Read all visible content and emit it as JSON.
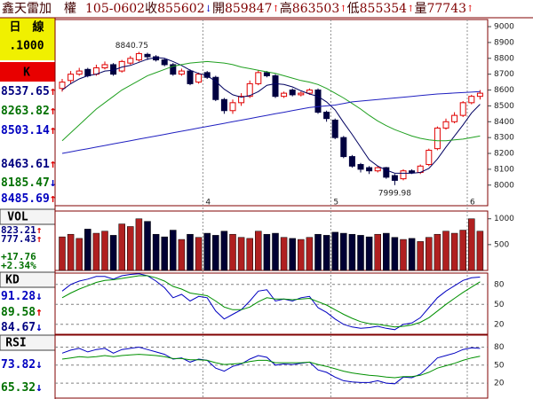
{
  "header": {
    "name": "鑫天雷加　權",
    "date": "105-0602",
    "quotes": [
      {
        "label": "收",
        "value": "855602",
        "arrow": "↓"
      },
      {
        "label": "開",
        "value": "859847",
        "arrow": "↑"
      },
      {
        "label": "高",
        "value": "863503",
        "arrow": "↑"
      },
      {
        "label": "低",
        "value": "855354",
        "arrow": "↑"
      },
      {
        "label": "量",
        "value": "77743",
        "arrow": "↑"
      }
    ]
  },
  "sidebar": {
    "period": "日　線",
    "unit": ".1000",
    "k": "K",
    "k_values": [
      {
        "value": "8537.65",
        "arrow": "↑",
        "color": "#000080"
      },
      {
        "value": "8263.82",
        "arrow": "↑",
        "color": "#007000"
      },
      {
        "value": "8503.14",
        "arrow": "↑",
        "color": "#0000c0"
      },
      {
        "value": "8463.61",
        "arrow": "↑",
        "color": "#000080"
      },
      {
        "value": "8185.47",
        "arrow": "↓",
        "color": "#007000"
      },
      {
        "value": "8485.69",
        "arrow": "↑",
        "color": "#0000c0"
      }
    ],
    "vol_label": "VOL",
    "vol_values": [
      {
        "value": "823.21",
        "arrow": "↑",
        "color": "#000080"
      },
      {
        "value": "777.43",
        "arrow": "↑",
        "color": "#000080"
      }
    ],
    "vol_change": [
      {
        "value": "+17.76",
        "color": "#007000"
      },
      {
        "value": "+2.34%",
        "color": "#007000"
      }
    ],
    "kd_label": "KD",
    "kd_values": [
      {
        "value": "91.28",
        "arrow": "↓",
        "color": "#0000c0"
      },
      {
        "value": "89.58",
        "arrow": "↑",
        "color": "#007000"
      },
      {
        "value": "84.67",
        "arrow": "↓",
        "color": "#000080"
      }
    ],
    "rsi_label": "RSI",
    "rsi_values": [
      {
        "value": "73.82",
        "arrow": "↓",
        "color": "#0000c0"
      },
      {
        "value": "65.32",
        "arrow": "↓",
        "color": "#007000"
      }
    ]
  },
  "chart_data": [
    {
      "type": "candlestick",
      "categories": [
        null,
        null,
        null,
        null,
        null,
        null,
        null,
        null,
        null,
        null,
        null,
        null,
        null,
        null,
        null,
        null,
        null,
        "4",
        null,
        null,
        null,
        null,
        null,
        null,
        null,
        null,
        null,
        null,
        null,
        null,
        null,
        null,
        "5",
        null,
        null,
        null,
        null,
        null,
        null,
        null,
        null,
        null,
        null,
        null,
        null,
        null,
        null,
        null,
        "6",
        null
      ],
      "open": [
        8610,
        8660,
        8700,
        8730,
        8700,
        8740,
        8760,
        8720,
        8770,
        8790,
        8825,
        8810,
        8790,
        8760,
        8700,
        8720,
        8650,
        8710,
        8680,
        8540,
        8470,
        8520,
        8560,
        8640,
        8710,
        8690,
        8560,
        8600,
        8570,
        8580,
        8600,
        8460,
        8410,
        8300,
        8180,
        8130,
        8110,
        8090,
        8110,
        8060,
        8040,
        8090,
        8080,
        8130,
        8230,
        8360,
        8400,
        8440,
        8520,
        8560
      ],
      "high": [
        8670,
        8720,
        8740,
        8740,
        8760,
        8780,
        8770,
        8790,
        8815,
        8840.75,
        8835,
        8820,
        8800,
        8770,
        8735,
        8730,
        8710,
        8720,
        8690,
        8550,
        8540,
        8580,
        8660,
        8725,
        8720,
        8700,
        8590,
        8610,
        8590,
        8610,
        8610,
        8470,
        8420,
        8310,
        8190,
        8140,
        8120,
        8120,
        8115,
        8070,
        8100,
        8100,
        8130,
        8230,
        8370,
        8420,
        8460,
        8530,
        8570,
        8600
      ],
      "low": [
        8590,
        8640,
        8690,
        8680,
        8690,
        8730,
        8690,
        8710,
        8760,
        8780,
        8790,
        8780,
        8750,
        8690,
        8690,
        8630,
        8640,
        8670,
        8530,
        8450,
        8450,
        8500,
        8550,
        8630,
        8680,
        8550,
        8550,
        8560,
        8560,
        8570,
        8450,
        8400,
        8290,
        8170,
        8110,
        8080,
        8070,
        8080,
        8040,
        7999.98,
        8030,
        8070,
        8070,
        8120,
        8220,
        8350,
        8390,
        8430,
        8510,
        8540
      ],
      "close": [
        8650,
        8700,
        8720,
        8690,
        8740,
        8760,
        8700,
        8780,
        8800,
        8830,
        8810,
        8790,
        8760,
        8700,
        8720,
        8640,
        8700,
        8680,
        8540,
        8470,
        8520,
        8560,
        8640,
        8710,
        8690,
        8560,
        8580,
        8570,
        8580,
        8600,
        8460,
        8420,
        8300,
        8180,
        8120,
        8100,
        8090,
        8110,
        8050,
        8030,
        8090,
        8080,
        8120,
        8220,
        8360,
        8400,
        8440,
        8520,
        8560,
        8580
      ],
      "up_color": "#e00000",
      "down_color": "#000040",
      "series": [
        {
          "color": "#000060",
          "values": [
            8600,
            8640,
            8670,
            8690,
            8700,
            8720,
            8725,
            8745,
            8755,
            8775,
            8795,
            8805,
            8800,
            8780,
            8755,
            8725,
            8705,
            8690,
            8655,
            8605,
            8570,
            8555,
            8565,
            8590,
            8630,
            8640,
            8635,
            8620,
            8595,
            8575,
            8560,
            8525,
            8475,
            8395,
            8320,
            8240,
            8160,
            8120,
            8095,
            8075,
            8075,
            8075,
            8080,
            8105,
            8165,
            8240,
            8310,
            8380,
            8455,
            8510
          ]
        },
        {
          "color": "#20a020",
          "values": [
            8280,
            8330,
            8380,
            8430,
            8480,
            8520,
            8560,
            8600,
            8630,
            8660,
            8690,
            8710,
            8730,
            8750,
            8760,
            8770,
            8775,
            8780,
            8775,
            8770,
            8760,
            8745,
            8735,
            8725,
            8715,
            8705,
            8690,
            8675,
            8660,
            8650,
            8635,
            8610,
            8580,
            8550,
            8515,
            8480,
            8440,
            8405,
            8375,
            8350,
            8330,
            8310,
            8295,
            8285,
            8280,
            8280,
            8285,
            8290,
            8300,
            8310
          ]
        },
        {
          "color": "#2020c0",
          "values": [
            8200,
            8210,
            8220,
            8230,
            8240,
            8250,
            8260,
            8270,
            8280,
            8290,
            8300,
            8310,
            8320,
            8330,
            8340,
            8350,
            8360,
            8370,
            8380,
            8390,
            8400,
            8410,
            8420,
            8430,
            8440,
            8450,
            8460,
            8470,
            8480,
            8490,
            8495,
            8500,
            8505,
            8515,
            8525,
            8530,
            8535,
            8540,
            8545,
            8550,
            8555,
            8560,
            8565,
            8570,
            8575,
            8578,
            8581,
            8584,
            8587,
            8590
          ]
        }
      ],
      "ylim": [
        7870,
        9045
      ],
      "yticks": [
        8000,
        8100,
        8200,
        8300,
        8400,
        8500,
        8600,
        8700,
        8800,
        8900,
        9000
      ],
      "grid": false
    },
    {
      "type": "bar",
      "values": [
        650,
        700,
        620,
        800,
        720,
        760,
        680,
        900,
        850,
        1000,
        950,
        700,
        650,
        780,
        600,
        700,
        640,
        720,
        680,
        760,
        700,
        640,
        620,
        760,
        700,
        720,
        640,
        620,
        600,
        640,
        700,
        680,
        740,
        720,
        700,
        680,
        650,
        700,
        720,
        640,
        600,
        620,
        560,
        640,
        700,
        760,
        720,
        780,
        1000,
        760
      ],
      "up_color": "#b02020",
      "down_color": "#000033",
      "ylim": [
        0,
        1150
      ],
      "yticks": [
        500,
        1000
      ],
      "grid": false
    },
    {
      "type": "line",
      "series": [
        {
          "color": "#0000c0",
          "values": [
            70,
            80,
            85,
            88,
            92,
            92,
            88,
            93,
            95,
            96,
            93,
            85,
            75,
            60,
            65,
            55,
            62,
            60,
            40,
            28,
            35,
            42,
            55,
            70,
            72,
            55,
            58,
            55,
            60,
            62,
            45,
            38,
            28,
            20,
            16,
            14,
            15,
            17,
            14,
            12,
            20,
            22,
            30,
            45,
            60,
            70,
            78,
            86,
            90,
            91
          ]
        },
        {
          "color": "#009000",
          "values": [
            60,
            67,
            73,
            78,
            83,
            86,
            87,
            89,
            91,
            93,
            93,
            90,
            85,
            77,
            73,
            67,
            65,
            63,
            55,
            46,
            42,
            42,
            46,
            54,
            60,
            58,
            58,
            57,
            58,
            59,
            54,
            49,
            42,
            35,
            29,
            24,
            21,
            20,
            18,
            16,
            17,
            19,
            23,
            30,
            40,
            50,
            59,
            68,
            76,
            84
          ]
        }
      ],
      "ylim": [
        5,
        97
      ],
      "yticks": [
        20,
        50,
        80
      ],
      "grid": true
    },
    {
      "type": "line",
      "series": [
        {
          "color": "#0000c0",
          "values": [
            70,
            75,
            78,
            72,
            76,
            78,
            70,
            76,
            78,
            80,
            76,
            72,
            68,
            60,
            62,
            55,
            60,
            58,
            45,
            40,
            48,
            52,
            60,
            66,
            63,
            50,
            52,
            51,
            53,
            55,
            42,
            38,
            30,
            24,
            22,
            21,
            21,
            24,
            20,
            19,
            30,
            29,
            35,
            48,
            62,
            66,
            70,
            76,
            79,
            78
          ]
        },
        {
          "color": "#009000",
          "values": [
            60,
            62,
            64,
            63,
            64,
            66,
            64,
            66,
            67,
            68,
            67,
            66,
            64,
            61,
            61,
            59,
            59,
            58,
            54,
            51,
            52,
            53,
            56,
            58,
            58,
            54,
            54,
            54,
            54,
            55,
            51,
            48,
            44,
            40,
            37,
            35,
            33,
            32,
            30,
            29,
            31,
            31,
            33,
            38,
            45,
            49,
            53,
            58,
            62,
            65
          ]
        }
      ],
      "ylim": [
        -5,
        100
      ],
      "yticks": [
        20,
        50,
        80
      ],
      "grid": true
    }
  ]
}
